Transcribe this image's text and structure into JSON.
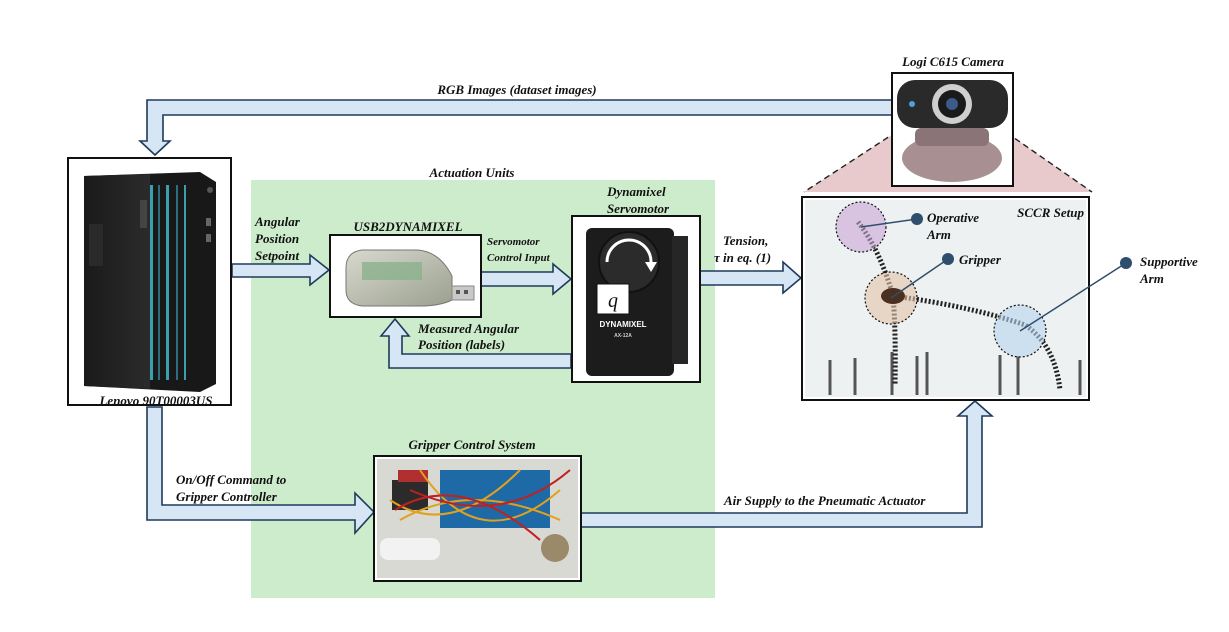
{
  "colors": {
    "arrow_fill": "#d6e6f5",
    "arrow_stroke": "#1f3a5a",
    "actuation_bg": "#cdeccb",
    "camera_cone": "#e8c9cc",
    "callout_dot": "#2f4e6e"
  },
  "labels": {
    "camera": "Logi C615 Camera",
    "rgb_images": "RGB Images (dataset images)",
    "actuation_units": "Actuation Units",
    "computer": "Lenovo 90T00003US",
    "angular_setpoint": [
      "Angular",
      "Position",
      "Setpoint"
    ],
    "usb2dynamixel": "USB2DYNAMIXEL",
    "servo_title": [
      "Dynamixel",
      "Servomotor"
    ],
    "servo_control": [
      "Servomotor",
      "Control Input"
    ],
    "measured": [
      "Measured Angular",
      "Position (labels)"
    ],
    "tension": [
      "Tension,",
      "τ in eq. (1)"
    ],
    "sccr_setup": "SCCR Setup",
    "operative_arm": [
      "Operative",
      "Arm"
    ],
    "gripper": "Gripper",
    "supportive_arm": [
      "Supportive",
      "Arm"
    ],
    "onoff": [
      "On/Off Command to",
      "Gripper Controller"
    ],
    "gripper_control": "Gripper Control System",
    "air_supply": "Air Supply to the Pneumatic Actuator",
    "servo_symbol": "q",
    "servo_brand": "DYNAMIXEL",
    "servo_model": "AX-12A"
  }
}
